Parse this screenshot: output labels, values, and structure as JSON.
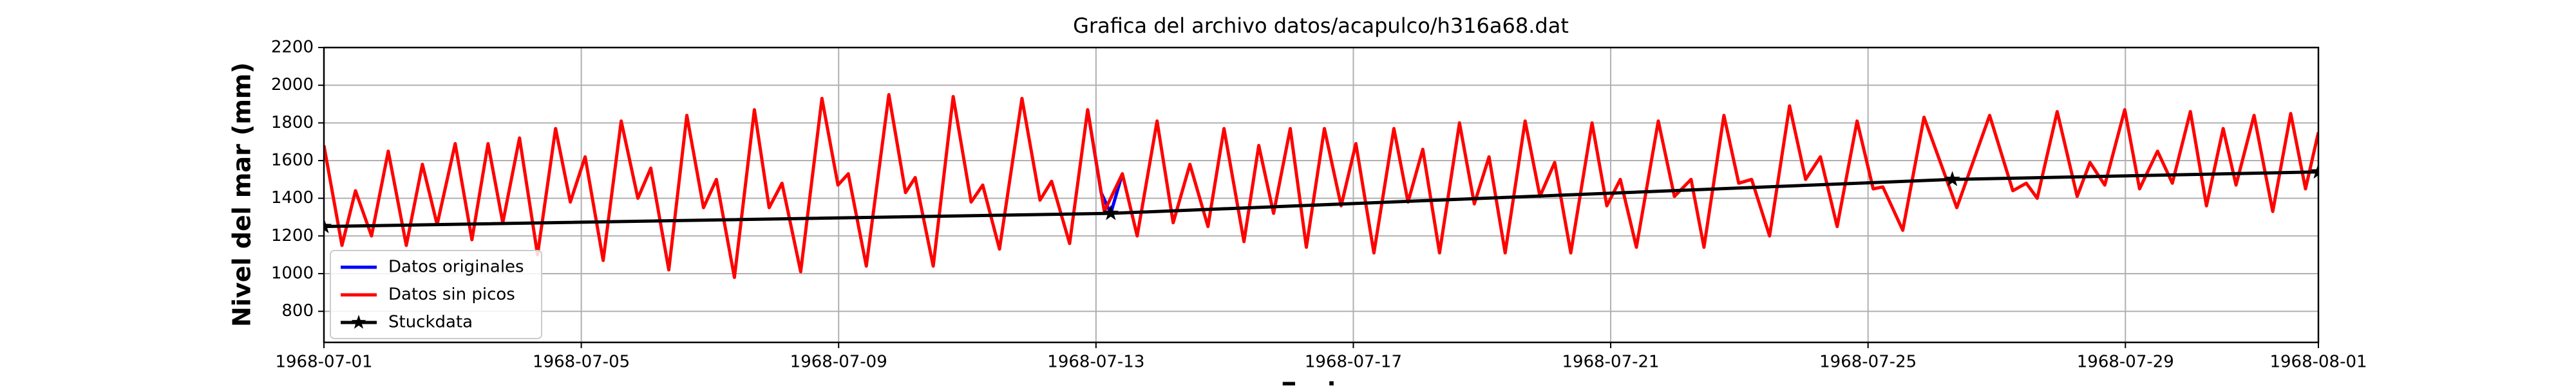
{
  "chart_data": {
    "type": "line",
    "title": "Grafica del archivo datos/acapulco/h316a68.dat",
    "x_label": "Fecha",
    "y_label": "Nivel del mar (mm)",
    "xlim": [
      0,
      31
    ],
    "xticks": [
      {
        "value": 0,
        "label": "1968-07-01"
      },
      {
        "value": 4,
        "label": "1968-07-05"
      },
      {
        "value": 8,
        "label": "1968-07-09"
      },
      {
        "value": 12,
        "label": "1968-07-13"
      },
      {
        "value": 16,
        "label": "1968-07-17"
      },
      {
        "value": 20,
        "label": "1968-07-21"
      },
      {
        "value": 24,
        "label": "1968-07-25"
      },
      {
        "value": 28,
        "label": "1968-07-29"
      },
      {
        "value": 31,
        "label": "1968-08-01"
      }
    ],
    "ylim": [
      635,
      2200
    ],
    "yticks": [
      800,
      1000,
      1200,
      1400,
      1600,
      1800,
      2000,
      2200
    ],
    "grid": true,
    "legend": "lower left",
    "series": [
      {
        "name": "Datos originales",
        "color": "#0000ff",
        "x": [
          11.87,
          12.08,
          12.23,
          12.41
        ],
        "values": [
          1870,
          1430,
          1320,
          1530
        ]
      },
      {
        "name": "Datos sin picos",
        "color": "#ff0000",
        "x": [
          0,
          0.28,
          0.49,
          0.74,
          1.0,
          1.28,
          1.53,
          1.76,
          2.04,
          2.3,
          2.55,
          2.78,
          3.04,
          3.32,
          3.6,
          3.83,
          4.06,
          4.34,
          4.62,
          4.88,
          5.08,
          5.36,
          5.64,
          5.9,
          6.1,
          6.38,
          6.69,
          6.92,
          7.12,
          7.41,
          7.74,
          7.99,
          8.15,
          8.43,
          8.78,
          9.04,
          9.19,
          9.47,
          9.78,
          10.06,
          10.24,
          10.5,
          10.85,
          11.13,
          11.31,
          11.59,
          11.87,
          12.13,
          12.41,
          12.64,
          12.95,
          13.2,
          13.46,
          13.74,
          13.99,
          14.3,
          14.53,
          14.76,
          15.02,
          15.27,
          15.55,
          15.81,
          16.04,
          16.32,
          16.63,
          16.85,
          17.08,
          17.34,
          17.65,
          17.88,
          18.11,
          18.36,
          18.67,
          18.9,
          19.13,
          19.38,
          19.71,
          19.94,
          20.15,
          20.4,
          20.74,
          20.99,
          21.25,
          21.45,
          21.76,
          21.99,
          22.19,
          22.47,
          22.78,
          23.03,
          23.26,
          23.52,
          23.83,
          24.08,
          24.23,
          24.54,
          24.87,
          25.38,
          25.89,
          26.25,
          26.46,
          26.63,
          26.94,
          27.25,
          27.45,
          27.68,
          27.99,
          28.22,
          28.5,
          28.73,
          29.01,
          29.26,
          29.52,
          29.72,
          30.0,
          30.29,
          30.57,
          30.8,
          31.0
        ],
        "values": [
          1680,
          1150,
          1440,
          1200,
          1650,
          1150,
          1580,
          1260,
          1690,
          1180,
          1690,
          1270,
          1720,
          1100,
          1770,
          1380,
          1620,
          1070,
          1810,
          1400,
          1560,
          1020,
          1840,
          1350,
          1500,
          980,
          1870,
          1350,
          1480,
          1010,
          1930,
          1470,
          1530,
          1040,
          1950,
          1430,
          1510,
          1040,
          1940,
          1380,
          1470,
          1130,
          1930,
          1390,
          1490,
          1160,
          1870,
          1330,
          1530,
          1200,
          1810,
          1270,
          1580,
          1250,
          1770,
          1170,
          1680,
          1320,
          1770,
          1140,
          1770,
          1360,
          1690,
          1110,
          1770,
          1380,
          1660,
          1110,
          1800,
          1370,
          1620,
          1110,
          1810,
          1410,
          1590,
          1110,
          1800,
          1360,
          1500,
          1140,
          1810,
          1410,
          1500,
          1140,
          1840,
          1480,
          1500,
          1200,
          1890,
          1500,
          1620,
          1250,
          1810,
          1450,
          1460,
          1230,
          1830,
          1350,
          1840,
          1440,
          1480,
          1400,
          1860,
          1410,
          1590,
          1470,
          1870,
          1450,
          1650,
          1480,
          1860,
          1360,
          1770,
          1470,
          1840,
          1330,
          1850,
          1450,
          1750
        ]
      },
      {
        "name": "Stuckdata",
        "color": "#000000",
        "marker": "*",
        "x": [
          0,
          12.23,
          25.31,
          31
        ],
        "values": [
          1250,
          1320,
          1500,
          1540
        ]
      }
    ]
  }
}
